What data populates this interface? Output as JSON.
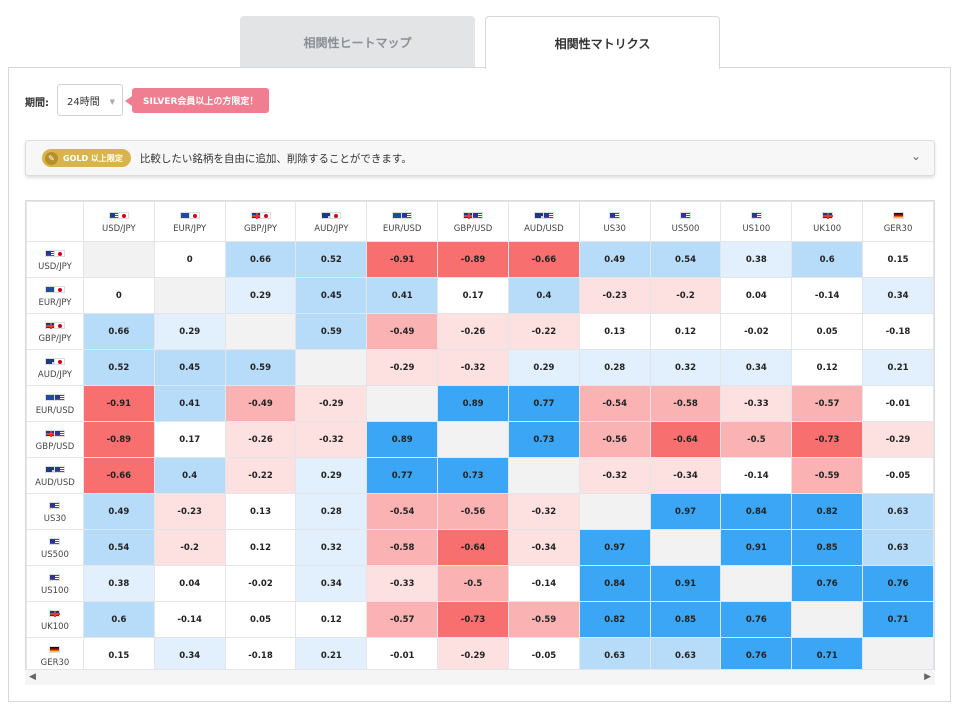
{
  "tabs": {
    "heatmap": "相関性ヒートマップ",
    "matrix": "相関性マトリクス"
  },
  "period": {
    "label": "期間:",
    "value": "24時間"
  },
  "silver_badge": "SILVER会員以上の方限定！",
  "gold_bar": {
    "badge": "GOLD 以上限定",
    "text": "比較したい銘柄を自由に追加、削除することができます。"
  },
  "colors": {
    "neg_strong": "#f7706f",
    "neg_mid": "#fbb2b2",
    "neg_light": "#fde0e0",
    "pos_strong": "#3aa6f5",
    "pos_mid": "#b7dcfa",
    "pos_light": "#e1f0fc",
    "diag": "#f2f2f2"
  },
  "instruments": [
    {
      "name": "USD/JPY",
      "flags": [
        "USD",
        "JPY"
      ]
    },
    {
      "name": "EUR/JPY",
      "flags": [
        "EUR",
        "JPY"
      ]
    },
    {
      "name": "GBP/JPY",
      "flags": [
        "GBP",
        "JPY"
      ]
    },
    {
      "name": "AUD/JPY",
      "flags": [
        "AUD",
        "JPY"
      ]
    },
    {
      "name": "EUR/USD",
      "flags": [
        "EUR",
        "USD"
      ]
    },
    {
      "name": "GBP/USD",
      "flags": [
        "GBP",
        "USD"
      ]
    },
    {
      "name": "AUD/USD",
      "flags": [
        "AUD",
        "USD"
      ]
    },
    {
      "name": "US30",
      "flags": [
        "USD"
      ]
    },
    {
      "name": "US500",
      "flags": [
        "USD"
      ]
    },
    {
      "name": "US100",
      "flags": [
        "USD"
      ]
    },
    {
      "name": "UK100",
      "flags": [
        "GBP"
      ]
    },
    {
      "name": "GER30",
      "flags": [
        "DE"
      ]
    }
  ],
  "matrix": [
    [
      null,
      0,
      0.66,
      0.52,
      -0.91,
      -0.89,
      -0.66,
      0.49,
      0.54,
      0.38,
      0.6,
      0.15
    ],
    [
      0,
      null,
      0.29,
      0.45,
      0.41,
      0.17,
      0.4,
      -0.23,
      -0.2,
      0.04,
      -0.14,
      0.34
    ],
    [
      0.66,
      0.29,
      null,
      0.59,
      -0.49,
      -0.26,
      -0.22,
      0.13,
      0.12,
      -0.02,
      0.05,
      -0.18
    ],
    [
      0.52,
      0.45,
      0.59,
      null,
      -0.29,
      -0.32,
      0.29,
      0.28,
      0.32,
      0.34,
      0.12,
      0.21
    ],
    [
      -0.91,
      0.41,
      -0.49,
      -0.29,
      null,
      0.89,
      0.77,
      -0.54,
      -0.58,
      -0.33,
      -0.57,
      -0.01
    ],
    [
      -0.89,
      0.17,
      -0.26,
      -0.32,
      0.89,
      null,
      0.73,
      -0.56,
      -0.64,
      -0.5,
      -0.73,
      -0.29
    ],
    [
      -0.66,
      0.4,
      -0.22,
      0.29,
      0.77,
      0.73,
      null,
      -0.32,
      -0.34,
      -0.14,
      -0.59,
      -0.05
    ],
    [
      0.49,
      -0.23,
      0.13,
      0.28,
      -0.54,
      -0.56,
      -0.32,
      null,
      0.97,
      0.84,
      0.82,
      0.63
    ],
    [
      0.54,
      -0.2,
      0.12,
      0.32,
      -0.58,
      -0.64,
      -0.34,
      0.97,
      null,
      0.91,
      0.85,
      0.63
    ],
    [
      0.38,
      0.04,
      -0.02,
      0.34,
      -0.33,
      -0.5,
      -0.14,
      0.84,
      0.91,
      null,
      0.76,
      0.76
    ],
    [
      0.6,
      -0.14,
      0.05,
      0.12,
      -0.57,
      -0.73,
      -0.59,
      0.82,
      0.85,
      0.76,
      null,
      0.71
    ],
    [
      0.15,
      0.34,
      -0.18,
      0.21,
      -0.01,
      -0.29,
      -0.05,
      0.63,
      0.63,
      0.76,
      0.71,
      null
    ]
  ]
}
